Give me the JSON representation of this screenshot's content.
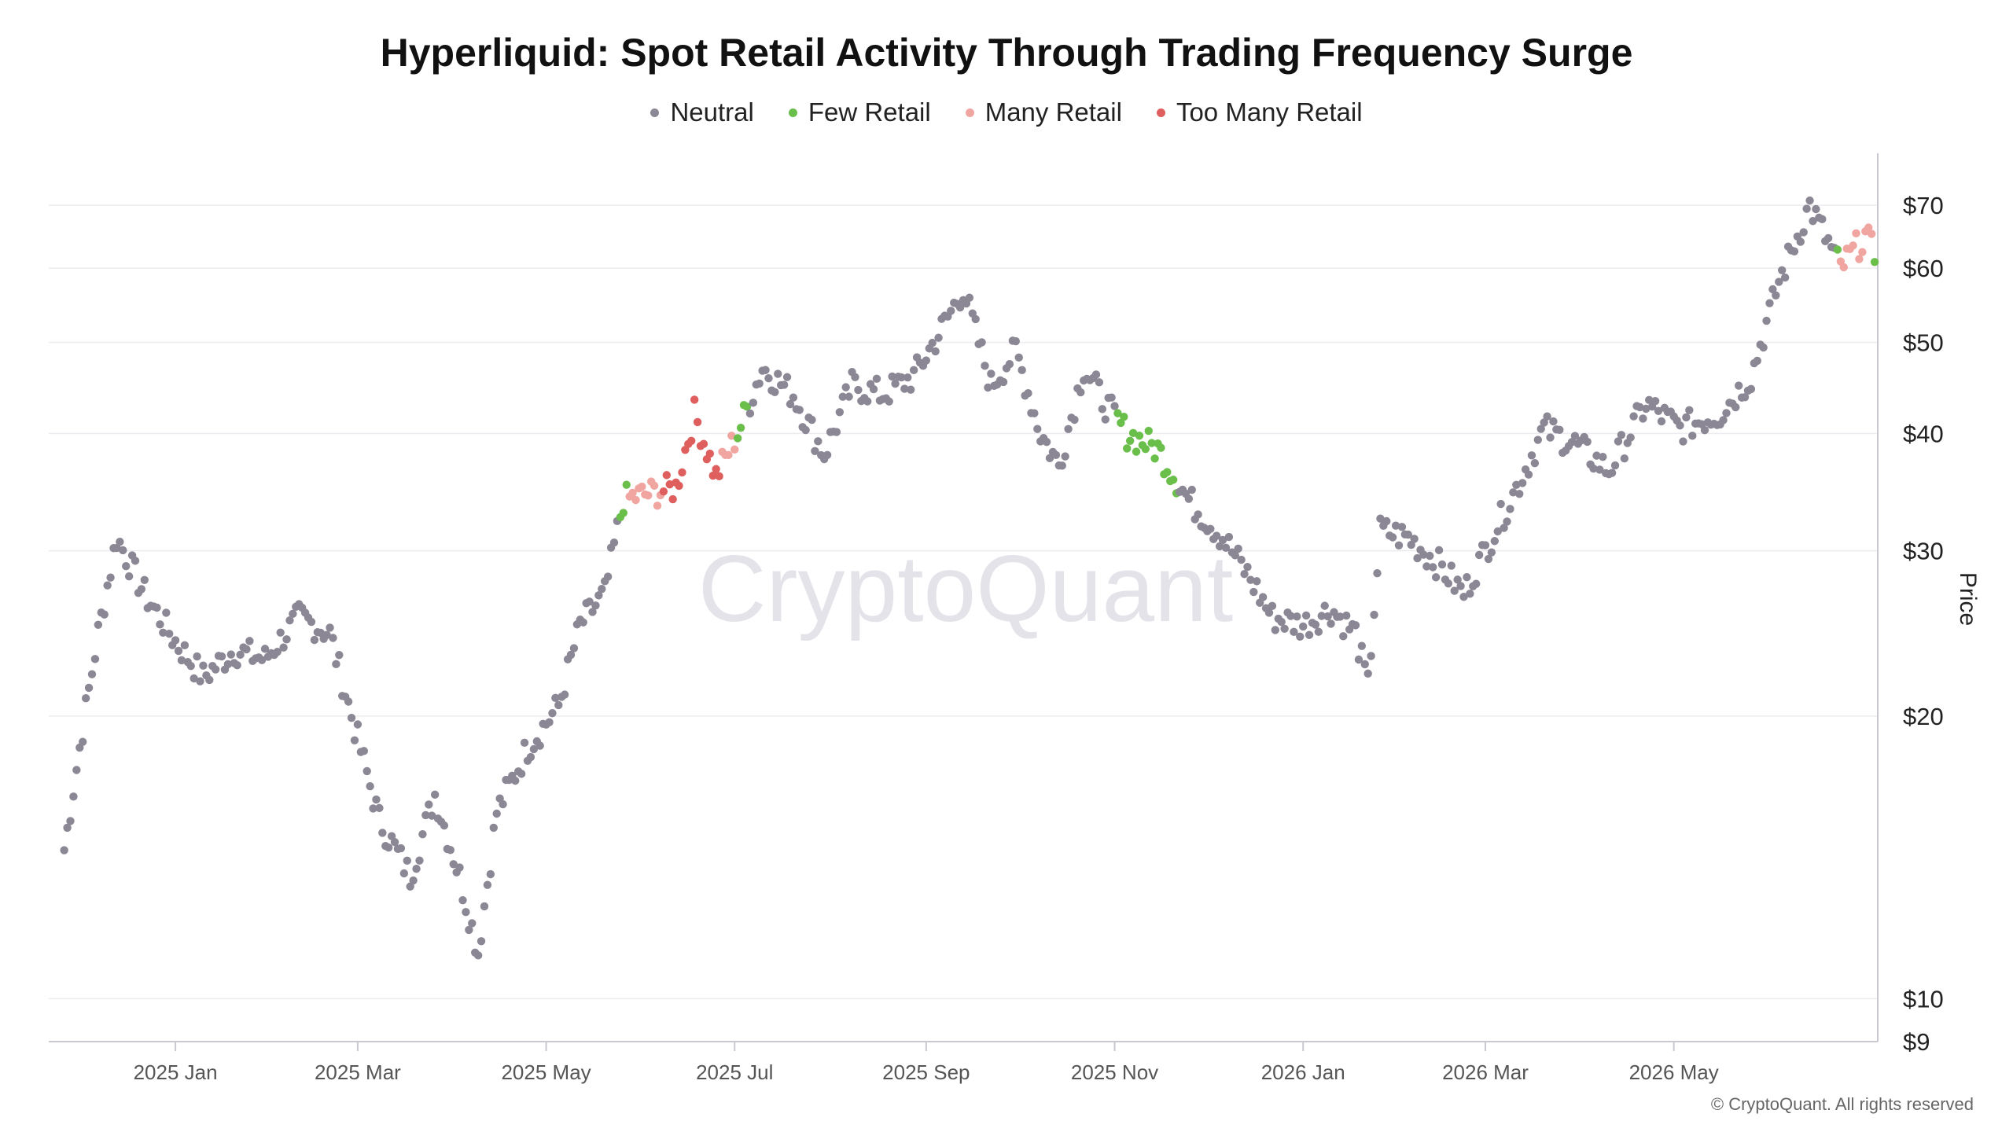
{
  "chart_data": {
    "type": "scatter",
    "title": "Hyperliquid: Spot Retail Activity Through Trading Frequency Surge",
    "ylabel": "Price",
    "yscale": "log",
    "ylim": [
      9,
      78
    ],
    "yticks": [
      {
        "value": 10,
        "label": "$10"
      },
      {
        "value": 20,
        "label": "$20"
      },
      {
        "value": 30,
        "label": "$30"
      },
      {
        "value": 40,
        "label": "$40"
      },
      {
        "value": 50,
        "label": "$50"
      },
      {
        "value": 60,
        "label": "$60"
      },
      {
        "value": 70,
        "label": "$70"
      },
      {
        "value": 9,
        "label": "$9"
      }
    ],
    "xlim": [
      "2024-11-21",
      "2026-07-06"
    ],
    "xticks": [
      {
        "date": "2025-01-01",
        "label": "2025 Jan"
      },
      {
        "date": "2025-03-01",
        "label": "2025 Mar"
      },
      {
        "date": "2025-05-01",
        "label": "2025 May"
      },
      {
        "date": "2025-07-01",
        "label": "2025 Jul"
      },
      {
        "date": "2025-09-01",
        "label": "2025 Sep"
      },
      {
        "date": "2025-11-01",
        "label": "2025 Nov"
      },
      {
        "date": "2026-01-01",
        "label": "2026 Jan"
      },
      {
        "date": "2026-03-01",
        "label": "2026 Mar"
      },
      {
        "date": "2026-05-01",
        "label": "2026 May"
      }
    ],
    "legend_position": "top-center",
    "grid": "horizontal",
    "series": [
      {
        "name": "Neutral",
        "color": "#8b8795"
      },
      {
        "name": "Few Retail",
        "color": "#6abf4b"
      },
      {
        "name": "Many Retail",
        "color": "#f1a5a0"
      },
      {
        "name": "Too Many Retail",
        "color": "#df5e5e"
      }
    ],
    "anchors": [
      [
        "2024-11-26",
        14.4
      ],
      [
        "2024-12-01",
        18.5
      ],
      [
        "2024-12-07",
        24.5
      ],
      [
        "2024-12-13",
        31
      ],
      [
        "2024-12-22",
        27
      ],
      [
        "2025-01-01",
        24
      ],
      [
        "2025-01-10",
        22
      ],
      [
        "2025-01-20",
        23.5
      ],
      [
        "2025-01-30",
        23
      ],
      [
        "2025-02-10",
        25.5
      ],
      [
        "2025-02-20",
        24.5
      ],
      [
        "2025-02-27",
        20
      ],
      [
        "2025-03-08",
        15.5
      ],
      [
        "2025-03-18",
        13.5
      ],
      [
        "2025-03-26",
        16.5
      ],
      [
        "2025-04-03",
        13.5
      ],
      [
        "2025-04-09",
        11.2
      ],
      [
        "2025-04-15",
        15.8
      ],
      [
        "2025-04-25",
        18.5
      ],
      [
        "2025-05-05",
        20.5
      ],
      [
        "2025-05-12",
        25
      ],
      [
        "2025-05-20",
        27
      ],
      [
        "2025-05-26",
        34
      ],
      [
        "2025-06-03",
        34.5
      ],
      [
        "2025-06-12",
        35
      ],
      [
        "2025-06-18",
        42
      ],
      [
        "2025-06-25",
        36
      ],
      [
        "2025-07-02",
        40
      ],
      [
        "2025-07-10",
        47
      ],
      [
        "2025-07-20",
        44
      ],
      [
        "2025-07-30",
        38
      ],
      [
        "2025-08-08",
        45
      ],
      [
        "2025-08-18",
        44
      ],
      [
        "2025-08-28",
        46
      ],
      [
        "2025-09-05",
        51
      ],
      [
        "2025-09-13",
        57
      ],
      [
        "2025-09-22",
        45
      ],
      [
        "2025-09-30",
        49
      ],
      [
        "2025-10-08",
        40
      ],
      [
        "2025-10-14",
        37
      ],
      [
        "2025-10-22",
        47
      ],
      [
        "2025-10-29",
        43
      ],
      [
        "2025-11-05",
        40
      ],
      [
        "2025-11-15",
        38.5
      ],
      [
        "2025-11-25",
        34
      ],
      [
        "2025-12-06",
        31
      ],
      [
        "2025-12-15",
        28
      ],
      [
        "2025-12-22",
        25.5
      ],
      [
        "2026-01-01",
        25
      ],
      [
        "2026-01-10",
        26
      ],
      [
        "2026-01-18",
        24.5
      ],
      [
        "2026-01-22",
        21.5
      ],
      [
        "2026-01-26",
        31.5
      ],
      [
        "2026-02-04",
        31
      ],
      [
        "2026-02-14",
        29
      ],
      [
        "2026-02-22",
        27
      ],
      [
        "2026-03-03",
        31
      ],
      [
        "2026-03-12",
        35.5
      ],
      [
        "2026-03-20",
        40.5
      ],
      [
        "2026-03-30",
        39
      ],
      [
        "2026-04-10",
        36.5
      ],
      [
        "2026-04-22",
        43
      ],
      [
        "2026-05-03",
        40.5
      ],
      [
        "2026-05-16",
        42
      ],
      [
        "2026-05-26",
        46
      ],
      [
        "2026-06-04",
        58
      ],
      [
        "2026-06-14",
        70
      ],
      [
        "2026-06-24",
        60
      ],
      [
        "2026-07-02",
        65
      ],
      [
        "2026-07-05",
        62
      ]
    ],
    "segments": [
      {
        "from": "2024-11-26",
        "to": "2025-05-24",
        "series": "Neutral"
      },
      {
        "from": "2025-05-25",
        "to": "2025-05-27",
        "series": "Few Retail"
      },
      {
        "from": "2025-05-28",
        "to": "2025-06-07",
        "series": "Many Retail"
      },
      {
        "from": "2025-06-08",
        "to": "2025-06-14",
        "series": "Too Many Retail"
      },
      {
        "from": "2025-06-15",
        "to": "2025-06-26",
        "series": "Too Many Retail"
      },
      {
        "from": "2025-06-27",
        "to": "2025-07-01",
        "series": "Many Retail"
      },
      {
        "from": "2025-07-02",
        "to": "2025-07-05",
        "series": "Few Retail"
      },
      {
        "from": "2025-07-06",
        "to": "2025-11-01",
        "series": "Neutral"
      },
      {
        "from": "2025-11-02",
        "to": "2025-11-21",
        "series": "Few Retail"
      },
      {
        "from": "2025-11-22",
        "to": "2026-06-22",
        "series": "Neutral"
      },
      {
        "from": "2026-06-23",
        "to": "2026-06-23",
        "series": "Few Retail"
      },
      {
        "from": "2026-06-24",
        "to": "2026-07-04",
        "series": "Many Retail"
      },
      {
        "from": "2026-07-05",
        "to": "2026-07-05",
        "series": "Few Retail"
      }
    ]
  },
  "watermark": "CryptoQuant",
  "copyright": "© CryptoQuant. All rights reserved"
}
